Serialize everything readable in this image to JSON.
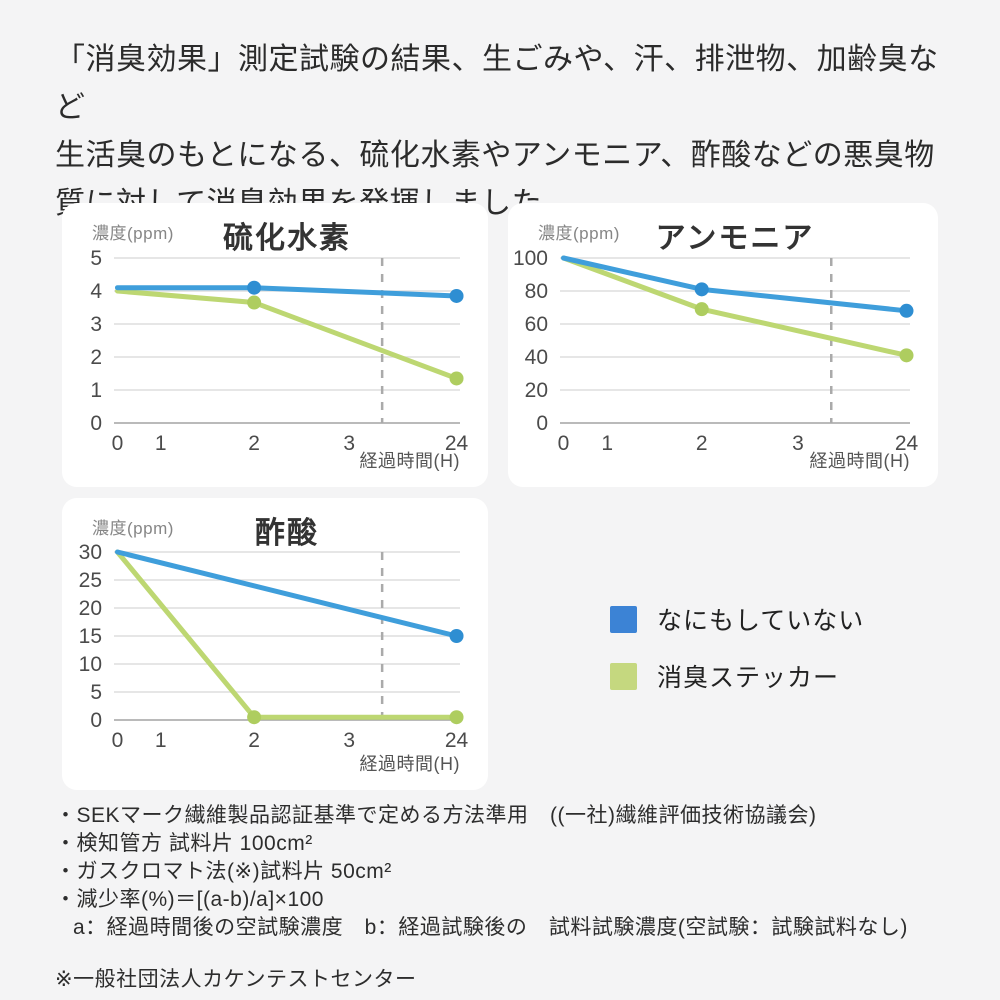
{
  "header": {
    "lines": [
      "「消臭効果」測定試験の結果、生ごみや、汗、排泄物、加齢臭など",
      "生活臭のもとになる、硫化水素やアンモニア、酢酸などの悪臭物",
      "質に対して消臭効果を発揮しました。"
    ]
  },
  "colors": {
    "blue_line": "#3f9edb",
    "blue_marker": "#2e8ed2",
    "green_line": "#bdd772",
    "green_marker": "#aecd5f",
    "grid": "#dedede",
    "axis": "#a3a3a3",
    "dash": "#aaaaaa",
    "tick_text": "#4b4b4b",
    "card_bg": "#ffffff",
    "page_bg": "#f4f4f5"
  },
  "chart_data": [
    {
      "type": "line",
      "title": "硫化水素",
      "y_unit": "濃度(ppm)",
      "x_unit": "経過時間(H)",
      "x_ticks": [
        "0",
        "1",
        "2",
        "3",
        "24"
      ],
      "x_tick_pos": [
        0.01,
        0.135,
        0.405,
        0.68,
        0.99
      ],
      "y_ticks": [
        0,
        1,
        2,
        3,
        4,
        5
      ],
      "ylim": [
        0,
        5
      ],
      "dash_x": 0.775,
      "series": [
        {
          "name": "なにもしていない",
          "color": "#3f9edb",
          "marker_color": "#2e8ed2",
          "x": [
            0,
            2,
            24
          ],
          "y": [
            4.1,
            4.1,
            3.85
          ],
          "markers": [
            2,
            24
          ]
        },
        {
          "name": "消臭ステッカー",
          "color": "#bdd772",
          "marker_color": "#aecd5f",
          "x": [
            0,
            2,
            24
          ],
          "y": [
            4.0,
            3.65,
            1.35
          ],
          "markers": [
            2,
            24
          ]
        }
      ]
    },
    {
      "type": "line",
      "title": "アンモニア",
      "y_unit": "濃度(ppm)",
      "x_unit": "経過時間(H)",
      "x_ticks": [
        "0",
        "1",
        "2",
        "3",
        "24"
      ],
      "x_tick_pos": [
        0.01,
        0.135,
        0.405,
        0.68,
        0.99
      ],
      "y_ticks": [
        0,
        20,
        40,
        60,
        80,
        100
      ],
      "ylim": [
        0,
        100
      ],
      "dash_x": 0.775,
      "series": [
        {
          "name": "なにもしていない",
          "color": "#3f9edb",
          "marker_color": "#2e8ed2",
          "x": [
            0,
            2,
            24
          ],
          "y": [
            100,
            81,
            68
          ],
          "markers": [
            2,
            24
          ]
        },
        {
          "name": "消臭ステッカー",
          "color": "#bdd772",
          "marker_color": "#aecd5f",
          "x": [
            0,
            2,
            24
          ],
          "y": [
            100,
            69,
            41
          ],
          "markers": [
            2,
            24
          ]
        }
      ]
    },
    {
      "type": "line",
      "title": "酢酸",
      "y_unit": "濃度(ppm)",
      "x_unit": "経過時間(H)",
      "x_ticks": [
        "0",
        "1",
        "2",
        "3",
        "24"
      ],
      "x_tick_pos": [
        0.01,
        0.135,
        0.405,
        0.68,
        0.99
      ],
      "y_ticks": [
        0,
        5,
        10,
        15,
        20,
        25,
        30
      ],
      "ylim": [
        0,
        30
      ],
      "dash_x": 0.775,
      "series": [
        {
          "name": "なにもしていない",
          "color": "#3f9edb",
          "marker_color": "#2e8ed2",
          "x": [
            0,
            24
          ],
          "y": [
            30,
            15
          ],
          "markers": [
            24
          ]
        },
        {
          "name": "消臭ステッカー",
          "color": "#bdd772",
          "marker_color": "#aecd5f",
          "x": [
            0,
            2,
            24
          ],
          "y": [
            30,
            0.5,
            0.5
          ],
          "markers": [
            2,
            24
          ]
        }
      ]
    }
  ],
  "legend": {
    "items": [
      {
        "label": "なにもしていない",
        "color": "#3c83d5"
      },
      {
        "label": "消臭ステッカー",
        "color": "#c5d87f"
      }
    ]
  },
  "footnotes": {
    "items": [
      "・SEKマーク繊維製品認証基準で定める方法準用　((一社)繊維評価技術協議会)",
      "・検知管方 試料片 100cm²",
      "・ガスクロマト法(※)試料片 50cm²",
      "・減少率(%)＝[(a-b)/a]×100",
      "a：経過時間後の空試験濃度　b：経過試験後の　試料試験濃度(空試験：試験試料なし)"
    ],
    "note": "※一般社団法人カケンテストセンター"
  }
}
